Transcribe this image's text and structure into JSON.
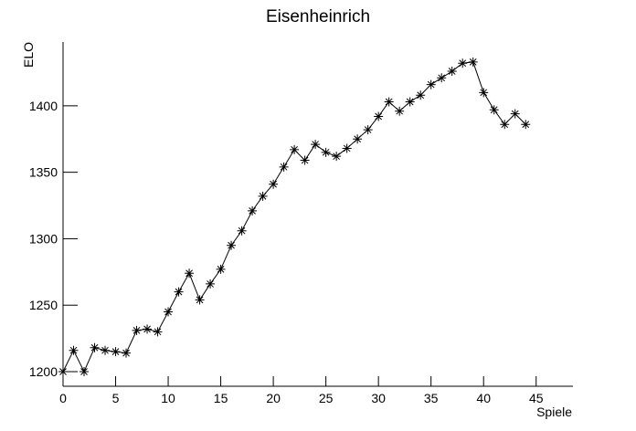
{
  "chart_data": {
    "type": "line",
    "title": "Eisenheinrich",
    "x_label": "Spiele",
    "y_label": "ELO",
    "x": [
      0,
      1,
      2,
      3,
      4,
      5,
      6,
      7,
      8,
      9,
      10,
      11,
      12,
      13,
      14,
      15,
      16,
      17,
      18,
      19,
      20,
      21,
      22,
      23,
      24,
      25,
      26,
      27,
      28,
      29,
      30,
      31,
      32,
      33,
      34,
      35,
      36,
      37,
      38,
      39,
      40,
      41,
      42,
      43,
      44
    ],
    "series": [
      {
        "color": "#000000",
        "marker": "asterisk",
        "values": [
          1200,
          1216,
          1200,
          1218,
          1216,
          1215,
          1214,
          1231,
          1232,
          1230,
          1245,
          1260,
          1274,
          1254,
          1266,
          1277,
          1295,
          1306,
          1321,
          1332,
          1341,
          1354,
          1367,
          1359,
          1371,
          1365,
          1362,
          1368,
          1375,
          1382,
          1392,
          1403,
          1396,
          1403,
          1408,
          1416,
          1421,
          1426,
          1432,
          1433,
          1410,
          1397,
          1386,
          1394,
          1386
        ]
      }
    ],
    "xlim": [
      0,
      48.5
    ],
    "xticks": [
      0,
      5,
      10,
      15,
      20,
      25,
      30,
      35,
      40,
      45
    ],
    "ylim": [
      1189,
      1448
    ],
    "yticks": [
      1200,
      1250,
      1300,
      1350,
      1400
    ],
    "grid": false
  }
}
